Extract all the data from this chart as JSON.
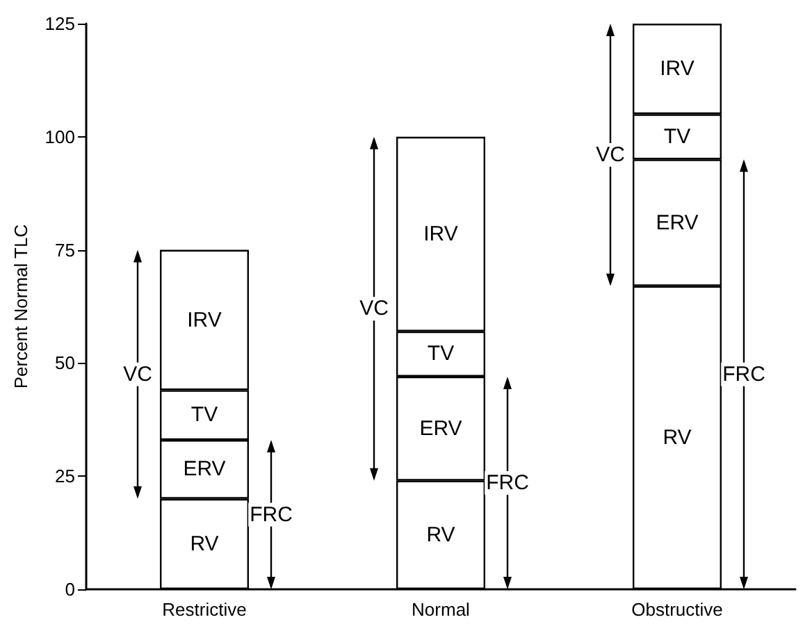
{
  "chart_data": {
    "type": "bar",
    "ylabel": "Percent Normal TLC",
    "categories": [
      "Restrictive",
      "Normal",
      "Obstructive"
    ],
    "stacked": true,
    "series": [
      {
        "name": "RV",
        "color": "#ffffff",
        "values": [
          20,
          24,
          67
        ]
      },
      {
        "name": "ERV",
        "color": "#ffffff",
        "values": [
          13,
          23,
          28
        ]
      },
      {
        "name": "TV",
        "color": "#ffffff",
        "values": [
          11,
          10,
          10
        ]
      },
      {
        "name": "IRV",
        "color": "#ffffff",
        "values": [
          31,
          43,
          20
        ]
      }
    ],
    "ylim": [
      0,
      125
    ],
    "yticks": [
      0,
      25,
      50,
      75,
      100,
      125
    ],
    "grid": false,
    "legend": false,
    "annotations": [
      "VC",
      "FRC",
      "VC",
      "FRC",
      "VC",
      "FRC"
    ]
  }
}
